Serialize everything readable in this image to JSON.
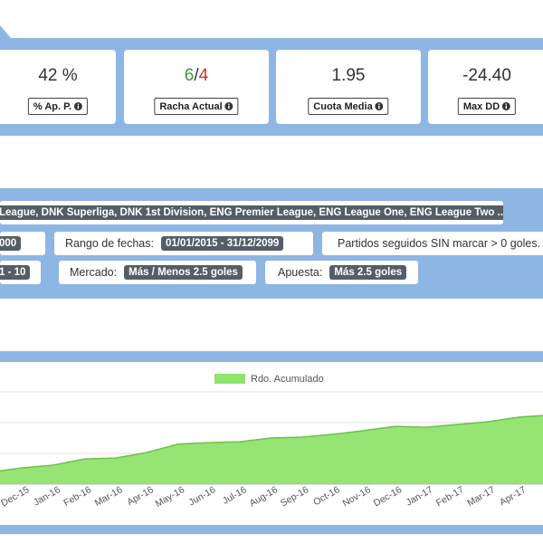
{
  "stats": [
    {
      "value": "42 %",
      "label": "% Ap. P."
    },
    {
      "won": "6",
      "sep": "/",
      "lost": "4",
      "label": "Racha Actual"
    },
    {
      "value": "1.95",
      "label": "Cuota Media"
    },
    {
      "value": "-24.40",
      "label": "Max DD"
    }
  ],
  "filters": {
    "leagues": "League, DNK Superliga, DNK 1st Division, ENG Premier League, ENG League One, ENG League Two ...",
    "first_badge": "000",
    "dates_label": "Rango de fechas:",
    "dates": "01/01/2015 - 31/12/2099",
    "streak_label": "Partidos seguidos SIN marcar > 0 goles.",
    "range_badge": "1 - 10",
    "market_label": "Mercado:",
    "market": "Más / Menos 2.5 goles",
    "bet_label": "Apuesta:",
    "bet": "Más 2.5 goles"
  },
  "chart_data": {
    "type": "area",
    "categories": [
      null,
      "Dec-15",
      "Jan-16",
      "Feb-16",
      "Mar-16",
      "Apr-16",
      "May-16",
      "Jun-16",
      "Jul-16",
      "Aug-16",
      "Sep-16",
      "Oct-16",
      "Nov-16",
      "Dec-16",
      "Jan-17",
      "Feb-17",
      "Mar-17",
      "Apr-17",
      null
    ],
    "series": [
      {
        "name": "Rdo. Acumulado",
        "color": "#90e36c",
        "values": [
          4.0,
          5.3,
          6.2,
          8.2,
          8.5,
          10.3,
          13.0,
          13.5,
          13.8,
          15.0,
          15.3,
          16.2,
          17.4,
          18.8,
          18.5,
          19.4,
          20.3,
          21.8,
          22.5
        ]
      }
    ],
    "ylim": [
      0,
      30
    ],
    "yticks": [
      0,
      10,
      20,
      30
    ],
    "grid": true
  }
}
